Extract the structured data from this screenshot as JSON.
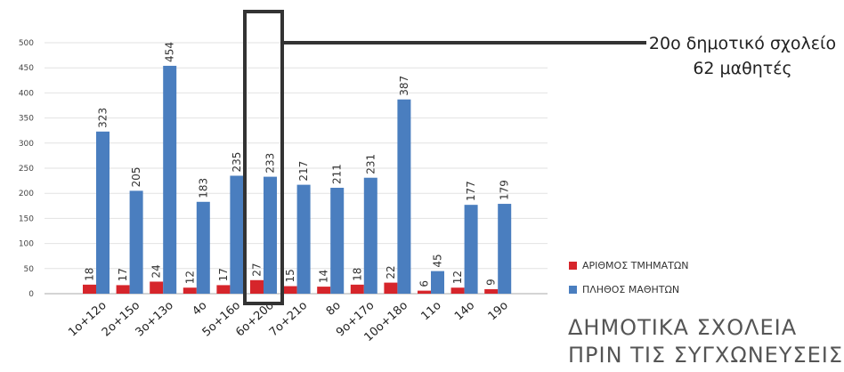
{
  "annotation": {
    "line1": "20ο δημοτικό σχολείο",
    "line2": "62 μαθητές"
  },
  "title": {
    "line1": "ΔΗΜΟΤΙΚΑ ΣΧΟΛΕΙΑ",
    "line2": "ΠΡΙΝ ΤΙΣ ΣΥΓΧΩΝΕΥΣΕΙΣ"
  },
  "chart_data": {
    "type": "bar",
    "categories": [
      "1ο+12ο",
      "2ο+15ο",
      "3ο+13ο",
      "4ο",
      "5ο+16ο",
      "6ο+20ο",
      "7ο+21ο",
      "8ο",
      "9ο+17ο",
      "10ο+18ο",
      "11ο",
      "14ο",
      "19ο"
    ],
    "series": [
      {
        "name": "ΑΡΙΘΜΟΣ ΤΜΗΜΑΤΩΝ",
        "color": "#d6252b",
        "values": [
          18,
          17,
          24,
          12,
          17,
          27,
          15,
          14,
          18,
          22,
          6,
          12,
          9
        ]
      },
      {
        "name": "ΠΛΗΘΟΣ ΜΑΘΗΤΩΝ",
        "color": "#4a7ebf",
        "values": [
          323,
          205,
          454,
          183,
          235,
          233,
          217,
          211,
          231,
          387,
          45,
          177,
          179
        ]
      }
    ],
    "y_ticks": [
      "0",
      "50",
      "100",
      "150",
      "200",
      "250",
      "300",
      "350",
      "400",
      "450",
      "500"
    ],
    "ylim": [
      0,
      500
    ],
    "grid": true,
    "legend": "right",
    "highlight_category": "6ο+20ο"
  }
}
